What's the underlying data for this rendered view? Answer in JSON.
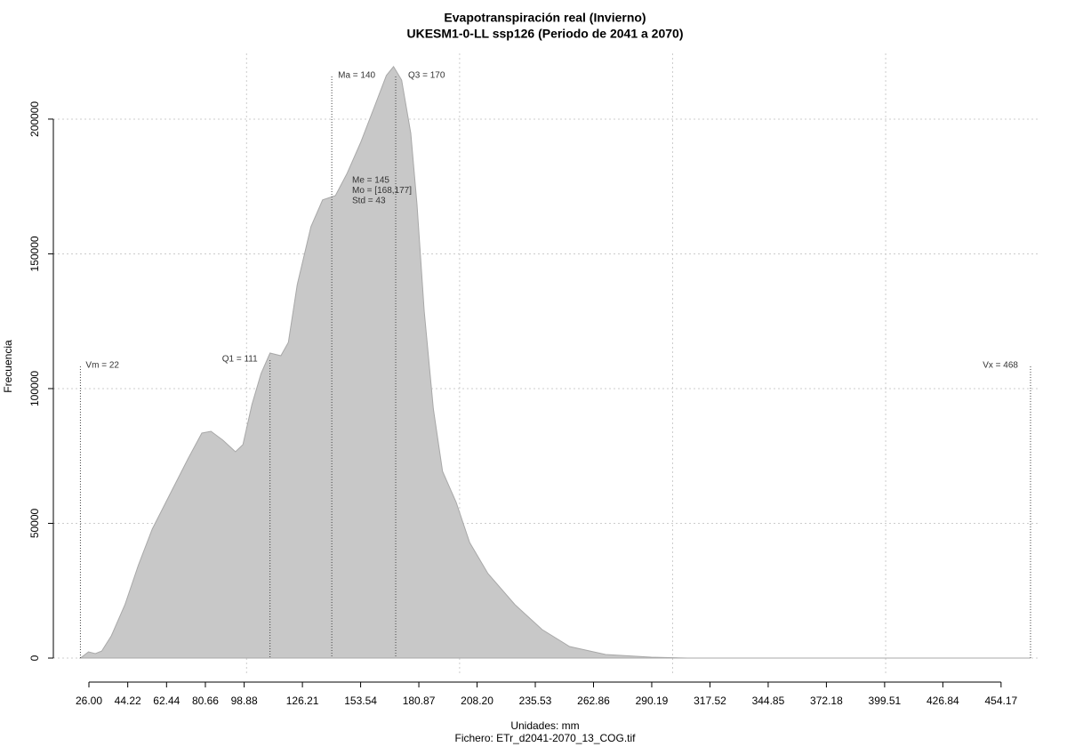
{
  "chart_data": {
    "type": "area",
    "title": "Evapotranspiración real (Invierno)",
    "subtitle": "UKESM1-0-LL ssp126 (Periodo de 2041 a 2070)",
    "x_label": "Unidades: mm",
    "footer": "Fichero: ETr_d2041-2070_13_COG.tif",
    "y_label": "Frecuencia",
    "color": "#c8c8c8",
    "x": [
      22,
      25.8,
      29,
      32,
      36.5,
      42.9,
      49.3,
      55.7,
      64.2,
      72.7,
      79,
      83.3,
      88.9,
      94.8,
      98.3,
      102.5,
      106.8,
      111,
      116.1,
      119.6,
      123.8,
      130.2,
      135.7,
      141.7,
      147.2,
      153.6,
      160,
      165.6,
      169,
      172.8,
      177.1,
      180,
      183.4,
      187.7,
      192,
      198.4,
      204.7,
      213.3,
      226,
      238.8,
      251.6,
      268.6,
      290,
      307,
      468
    ],
    "values": [
      0,
      2300,
      1650,
      2600,
      8250,
      19800,
      34650,
      47850,
      61050,
      74250,
      83500,
      84150,
      80850,
      76550,
      79200,
      94060,
      105600,
      113200,
      112200,
      117160,
      138600,
      160070,
      170000,
      171600,
      179900,
      191400,
      204600,
      216170,
      219470,
      214500,
      194700,
      168300,
      128700,
      92400,
      69300,
      57750,
      42900,
      31350,
      19800,
      10560,
      4290,
      1320,
      330,
      0,
      0
    ],
    "xlim": [
      9.3,
      472.6
    ],
    "xticks": [
      {
        "value": 26.0,
        "label": "26.00"
      },
      {
        "value": 44.22,
        "label": "44.22"
      },
      {
        "value": 62.44,
        "label": "62.44"
      },
      {
        "value": 80.66,
        "label": "80.66"
      },
      {
        "value": 98.88,
        "label": "98.88"
      },
      {
        "value": 126.21,
        "label": "126.21"
      },
      {
        "value": 153.54,
        "label": "153.54"
      },
      {
        "value": 180.87,
        "label": "180.87"
      },
      {
        "value": 208.2,
        "label": "208.20"
      },
      {
        "value": 235.53,
        "label": "235.53"
      },
      {
        "value": 262.86,
        "label": "262.86"
      },
      {
        "value": 290.19,
        "label": "290.19"
      },
      {
        "value": 317.52,
        "label": "317.52"
      },
      {
        "value": 344.85,
        "label": "344.85"
      },
      {
        "value": 372.18,
        "label": "372.18"
      },
      {
        "value": 399.51,
        "label": "399.51"
      },
      {
        "value": 426.84,
        "label": "426.84"
      },
      {
        "value": 454.17,
        "label": "454.17"
      }
    ],
    "ylim": [
      -6600,
      224400
    ],
    "yticks": [
      0,
      50000,
      100000,
      150000,
      200000
    ],
    "grid": true,
    "xgrid": [
      100,
      200,
      300,
      400
    ],
    "annotations": [
      {
        "label": "Vm = 22",
        "x": 22
      },
      {
        "label": "Q1 = 111",
        "x": 111
      },
      {
        "label": "Ma = 140",
        "x": 140
      },
      {
        "label": "Q3 = 170",
        "x": 170
      },
      {
        "label": "Vx = 468",
        "x": 468
      }
    ],
    "stats": [
      "Me = 145",
      "Mo = [168,177]",
      "Std = 43"
    ]
  }
}
